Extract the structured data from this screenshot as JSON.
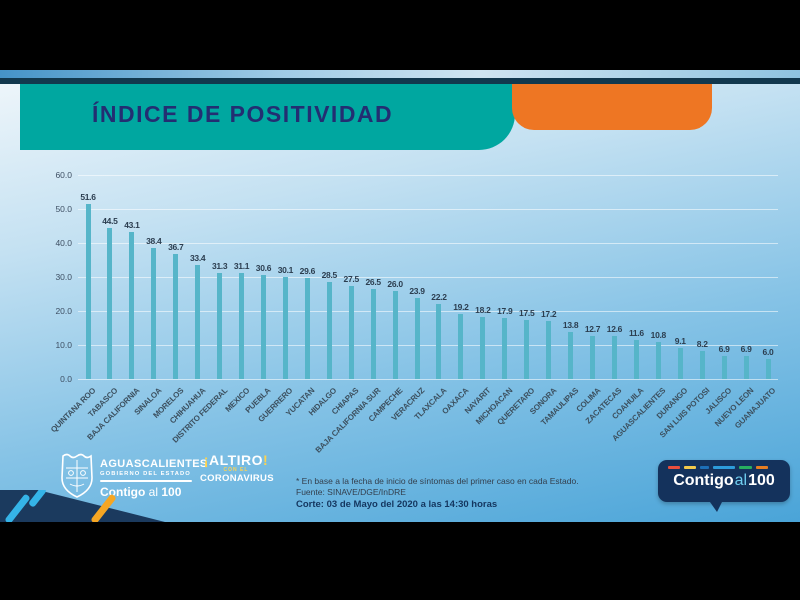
{
  "header": {
    "title": "ÍNDICE DE POSITIVIDAD"
  },
  "chart_data": {
    "type": "bar",
    "title": "ÍNDICE DE POSITIVIDAD",
    "categories": [
      "QUINTANA ROO",
      "TABASCO",
      "BAJA CALIFORNIA",
      "SINALOA",
      "MORELOS",
      "CHIHUAHUA",
      "DISTRITO FEDERAL",
      "MEXICO",
      "PUEBLA",
      "GUERRERO",
      "YUCATAN",
      "HIDALGO",
      "CHIAPAS",
      "BAJA CALIFORNIA SUR",
      "CAMPECHE",
      "VERACRUZ",
      "TLAXCALA",
      "OAXACA",
      "NAYARIT",
      "MICHOACAN",
      "QUERETARO",
      "SONORA",
      "TAMAULIPAS",
      "COLIMA",
      "ZACATECAS",
      "COAHUILA",
      "AGUASCALIENTES",
      "DURANGO",
      "SAN LUIS POTOSI",
      "JALISCO",
      "NUEVO LEON",
      "GUANAJUATO"
    ],
    "values": [
      51.6,
      44.5,
      43.1,
      38.4,
      36.7,
      33.4,
      31.3,
      31.1,
      30.6,
      30.1,
      29.6,
      28.5,
      27.5,
      26.5,
      26.0,
      23.9,
      22.2,
      19.2,
      18.2,
      17.9,
      17.5,
      17.2,
      13.8,
      12.7,
      12.6,
      11.6,
      10.8,
      9.1,
      8.2,
      6.9,
      6.9,
      6.0
    ],
    "xlabel": "",
    "ylabel": "",
    "ylim": [
      0,
      60
    ],
    "ytick_labels": [
      "0.0",
      "10.0",
      "20.0",
      "30.0",
      "40.0",
      "50.0",
      "60.0"
    ],
    "grid": true,
    "legend": false,
    "bar_color": "#56b5c9"
  },
  "footer": {
    "note": "* En base a la fecha de inicio de síntomas del primer caso en cada Estado.",
    "source": "Fuente: SINAVE/DGE/InDRE",
    "cutoff": "Corte: 03 de Mayo del 2020 a las 14:30 horas"
  },
  "logos": {
    "state": {
      "name": "AGUASCALIENTES",
      "subtitle": "GOBIERNO DEL ESTADO",
      "slogan_word1": "Contigo",
      "slogan_word2": "al",
      "slogan_word3": "100"
    },
    "campaign": {
      "excl_open": "¡",
      "word": "ALTIRO",
      "excl_close": "!",
      "middle": "CON EL",
      "bottom": "CORONAVIRUS"
    },
    "badge": {
      "word1": "Contigo",
      "word2": "al",
      "word3": "100",
      "dash_colors": [
        "#e94e3d",
        "#f2c94c",
        "#1d6fb8",
        "#2d9cdb",
        "#27ae60",
        "#e67e22"
      ],
      "dash_widths": [
        12,
        12,
        9,
        22,
        13,
        12
      ]
    }
  },
  "colors": {
    "teal_band": "#00a7a0",
    "orange_band": "#ee7623",
    "title_text": "#232e72",
    "bar": "#56b5c9",
    "badge_bg": "#14325c",
    "accent_navy": "#12384e"
  }
}
